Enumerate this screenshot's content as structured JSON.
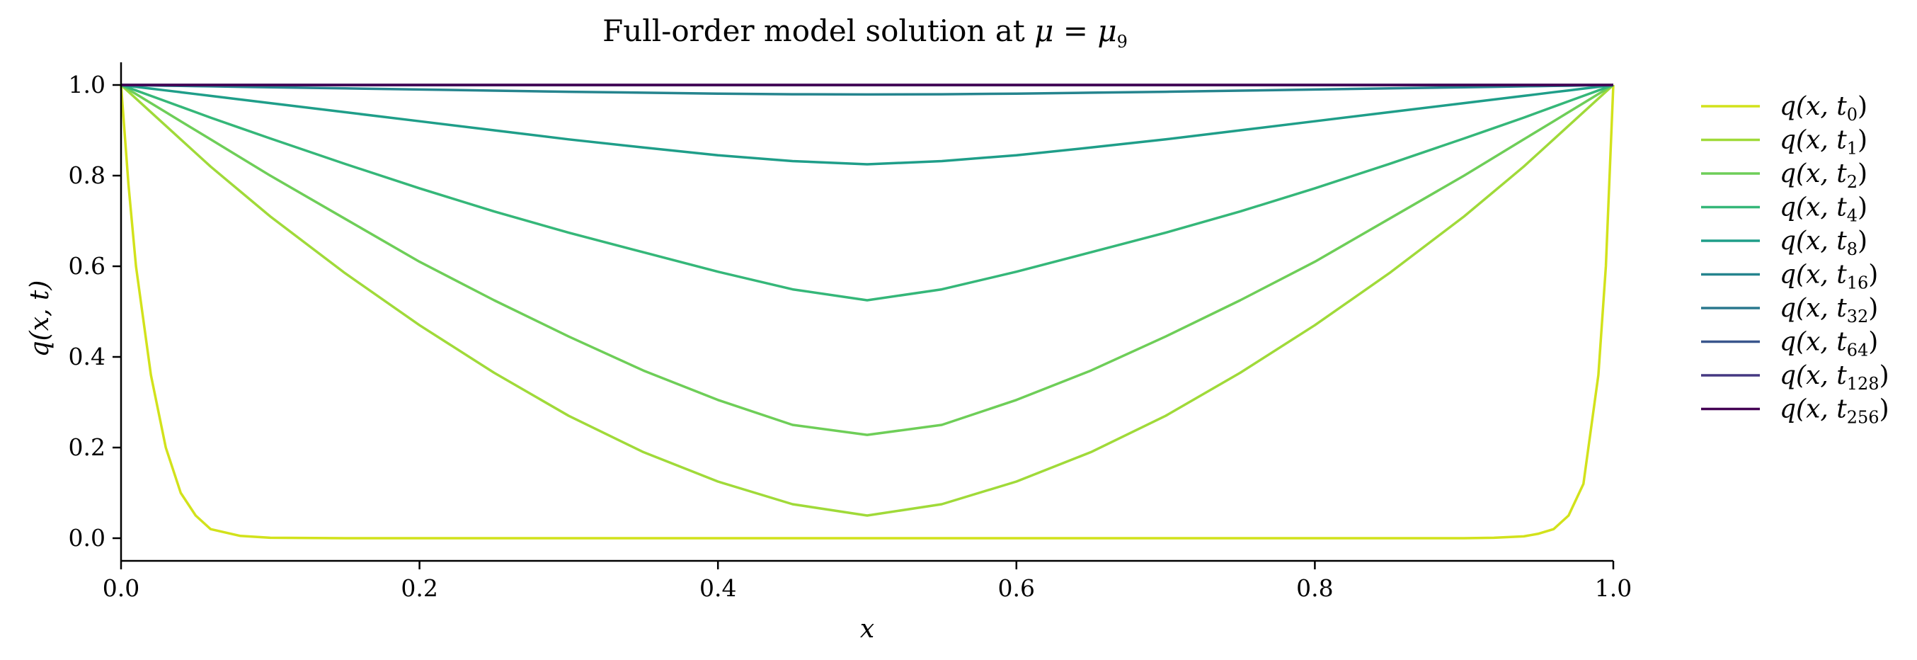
{
  "chart_data": {
    "type": "line",
    "title": {
      "text": "Full-order model solution at ",
      "mu": "μ",
      "equals": " = ",
      "sub": "9"
    },
    "xlabel": "x",
    "ylabel": "q(x, t)",
    "xlim": [
      0,
      1
    ],
    "ylim": [
      -0.05,
      1.05
    ],
    "xticks": [
      {
        "value": 0.0,
        "label": "0.0"
      },
      {
        "value": 0.2,
        "label": "0.2"
      },
      {
        "value": 0.4,
        "label": "0.4"
      },
      {
        "value": 0.6,
        "label": "0.6"
      },
      {
        "value": 0.8,
        "label": "0.8"
      },
      {
        "value": 1.0,
        "label": "1.0"
      }
    ],
    "yticks": [
      {
        "value": 0.0,
        "label": "0.0"
      },
      {
        "value": 0.2,
        "label": "0.2"
      },
      {
        "value": 0.4,
        "label": "0.4"
      },
      {
        "value": 0.6,
        "label": "0.6"
      },
      {
        "value": 0.8,
        "label": "0.8"
      },
      {
        "value": 1.0,
        "label": "1.0"
      }
    ],
    "grid": false,
    "legend_position": "outside-right",
    "x": [
      0.0,
      0.005,
      0.01,
      0.02,
      0.03,
      0.04,
      0.05,
      0.06,
      0.08,
      0.1,
      0.15,
      0.2,
      0.25,
      0.3,
      0.35,
      0.4,
      0.45,
      0.5,
      0.55,
      0.6,
      0.65,
      0.7,
      0.75,
      0.8,
      0.85,
      0.9,
      0.92,
      0.94,
      0.95,
      0.96,
      0.97,
      0.98,
      0.99,
      0.995,
      1.0
    ],
    "series": [
      {
        "name": "q(x, t",
        "sub": "0",
        "color": "#d2e21b",
        "values": [
          1.0,
          0.78,
          0.6,
          0.36,
          0.2,
          0.1,
          0.05,
          0.02,
          0.005,
          0.001,
          0,
          0,
          0,
          0,
          0,
          0,
          0,
          0,
          0,
          0,
          0,
          0,
          0,
          0,
          0,
          0,
          0.001,
          0.004,
          0.01,
          0.02,
          0.05,
          0.12,
          0.36,
          0.6,
          1.0
        ]
      },
      {
        "name": "q(x, t",
        "sub": "1",
        "color": "#a0da39",
        "values": [
          1.0,
          0.985,
          0.97,
          0.94,
          0.91,
          0.88,
          0.85,
          0.82,
          0.765,
          0.71,
          0.585,
          0.47,
          0.365,
          0.27,
          0.19,
          0.125,
          0.075,
          0.05,
          0.075,
          0.125,
          0.19,
          0.27,
          0.365,
          0.47,
          0.585,
          0.71,
          0.765,
          0.82,
          0.85,
          0.88,
          0.91,
          0.94,
          0.97,
          0.985,
          1.0
        ]
      },
      {
        "name": "q(x, t",
        "sub": "2",
        "color": "#6ece58",
        "values": [
          1.0,
          0.99,
          0.98,
          0.96,
          0.94,
          0.92,
          0.9,
          0.88,
          0.84,
          0.8,
          0.705,
          0.61,
          0.525,
          0.445,
          0.37,
          0.305,
          0.25,
          0.228,
          0.25,
          0.305,
          0.37,
          0.445,
          0.525,
          0.61,
          0.705,
          0.8,
          0.84,
          0.88,
          0.9,
          0.92,
          0.94,
          0.96,
          0.98,
          0.99,
          1.0
        ]
      },
      {
        "name": "q(x, t",
        "sub": "4",
        "color": "#35b779",
        "values": [
          1.0,
          0.994,
          0.988,
          0.976,
          0.964,
          0.952,
          0.94,
          0.928,
          0.905,
          0.882,
          0.826,
          0.772,
          0.721,
          0.674,
          0.631,
          0.588,
          0.549,
          0.525,
          0.549,
          0.588,
          0.631,
          0.674,
          0.721,
          0.772,
          0.826,
          0.882,
          0.905,
          0.928,
          0.94,
          0.952,
          0.964,
          0.976,
          0.988,
          0.994,
          1.0
        ]
      },
      {
        "name": "q(x, t",
        "sub": "8",
        "color": "#1f9e89",
        "values": [
          1.0,
          0.998,
          0.996,
          0.992,
          0.988,
          0.984,
          0.98,
          0.976,
          0.968,
          0.96,
          0.94,
          0.92,
          0.9,
          0.88,
          0.862,
          0.845,
          0.832,
          0.825,
          0.832,
          0.845,
          0.862,
          0.88,
          0.9,
          0.92,
          0.94,
          0.96,
          0.968,
          0.976,
          0.98,
          0.984,
          0.988,
          0.992,
          0.996,
          0.998,
          1.0
        ]
      },
      {
        "name": "q(x, t",
        "sub": "16",
        "color": "#25848e",
        "values": [
          1.0,
          0.9998,
          0.9995,
          0.999,
          0.9985,
          0.998,
          0.9975,
          0.997,
          0.996,
          0.995,
          0.9925,
          0.99,
          0.9875,
          0.985,
          0.983,
          0.981,
          0.9795,
          0.979,
          0.9795,
          0.981,
          0.983,
          0.985,
          0.9875,
          0.99,
          0.9925,
          0.995,
          0.996,
          0.997,
          0.9975,
          0.998,
          0.9985,
          0.999,
          0.9995,
          0.9998,
          1.0
        ]
      },
      {
        "name": "q(x, t",
        "sub": "32",
        "color": "#2a788e",
        "values": [
          1.0,
          1,
          1,
          1,
          1,
          1,
          1,
          1,
          1,
          1,
          0.9999,
          0.9999,
          0.9998,
          0.9998,
          0.9997,
          0.9997,
          0.9997,
          0.9996,
          0.9997,
          0.9997,
          0.9997,
          0.9998,
          0.9998,
          0.9999,
          0.9999,
          1,
          1,
          1,
          1,
          1,
          1,
          1,
          1,
          1,
          1.0
        ]
      },
      {
        "name": "q(x, t",
        "sub": "64",
        "color": "#39568c",
        "values": [
          1.0,
          1,
          1,
          1,
          1,
          1,
          1,
          1,
          1,
          1,
          1,
          1,
          1,
          1,
          1,
          1,
          1,
          1,
          1,
          1,
          1,
          1,
          1,
          1,
          1,
          1,
          1,
          1,
          1,
          1,
          1,
          1,
          1,
          1,
          1.0
        ]
      },
      {
        "name": "q(x, t",
        "sub": "128",
        "color": "#453882",
        "values": [
          1.0,
          1,
          1,
          1,
          1,
          1,
          1,
          1,
          1,
          1,
          1,
          1,
          1,
          1,
          1,
          1,
          1,
          1,
          1,
          1,
          1,
          1,
          1,
          1,
          1,
          1,
          1,
          1,
          1,
          1,
          1,
          1,
          1,
          1,
          1.0
        ]
      },
      {
        "name": "q(x, t",
        "sub": "256",
        "color": "#440154",
        "values": [
          1.0,
          1,
          1,
          1,
          1,
          1,
          1,
          1,
          1,
          1,
          1,
          1,
          1,
          1,
          1,
          1,
          1,
          1,
          1,
          1,
          1,
          1,
          1,
          1,
          1,
          1,
          1,
          1,
          1,
          1,
          1,
          1,
          1,
          1,
          1.0
        ]
      }
    ]
  }
}
